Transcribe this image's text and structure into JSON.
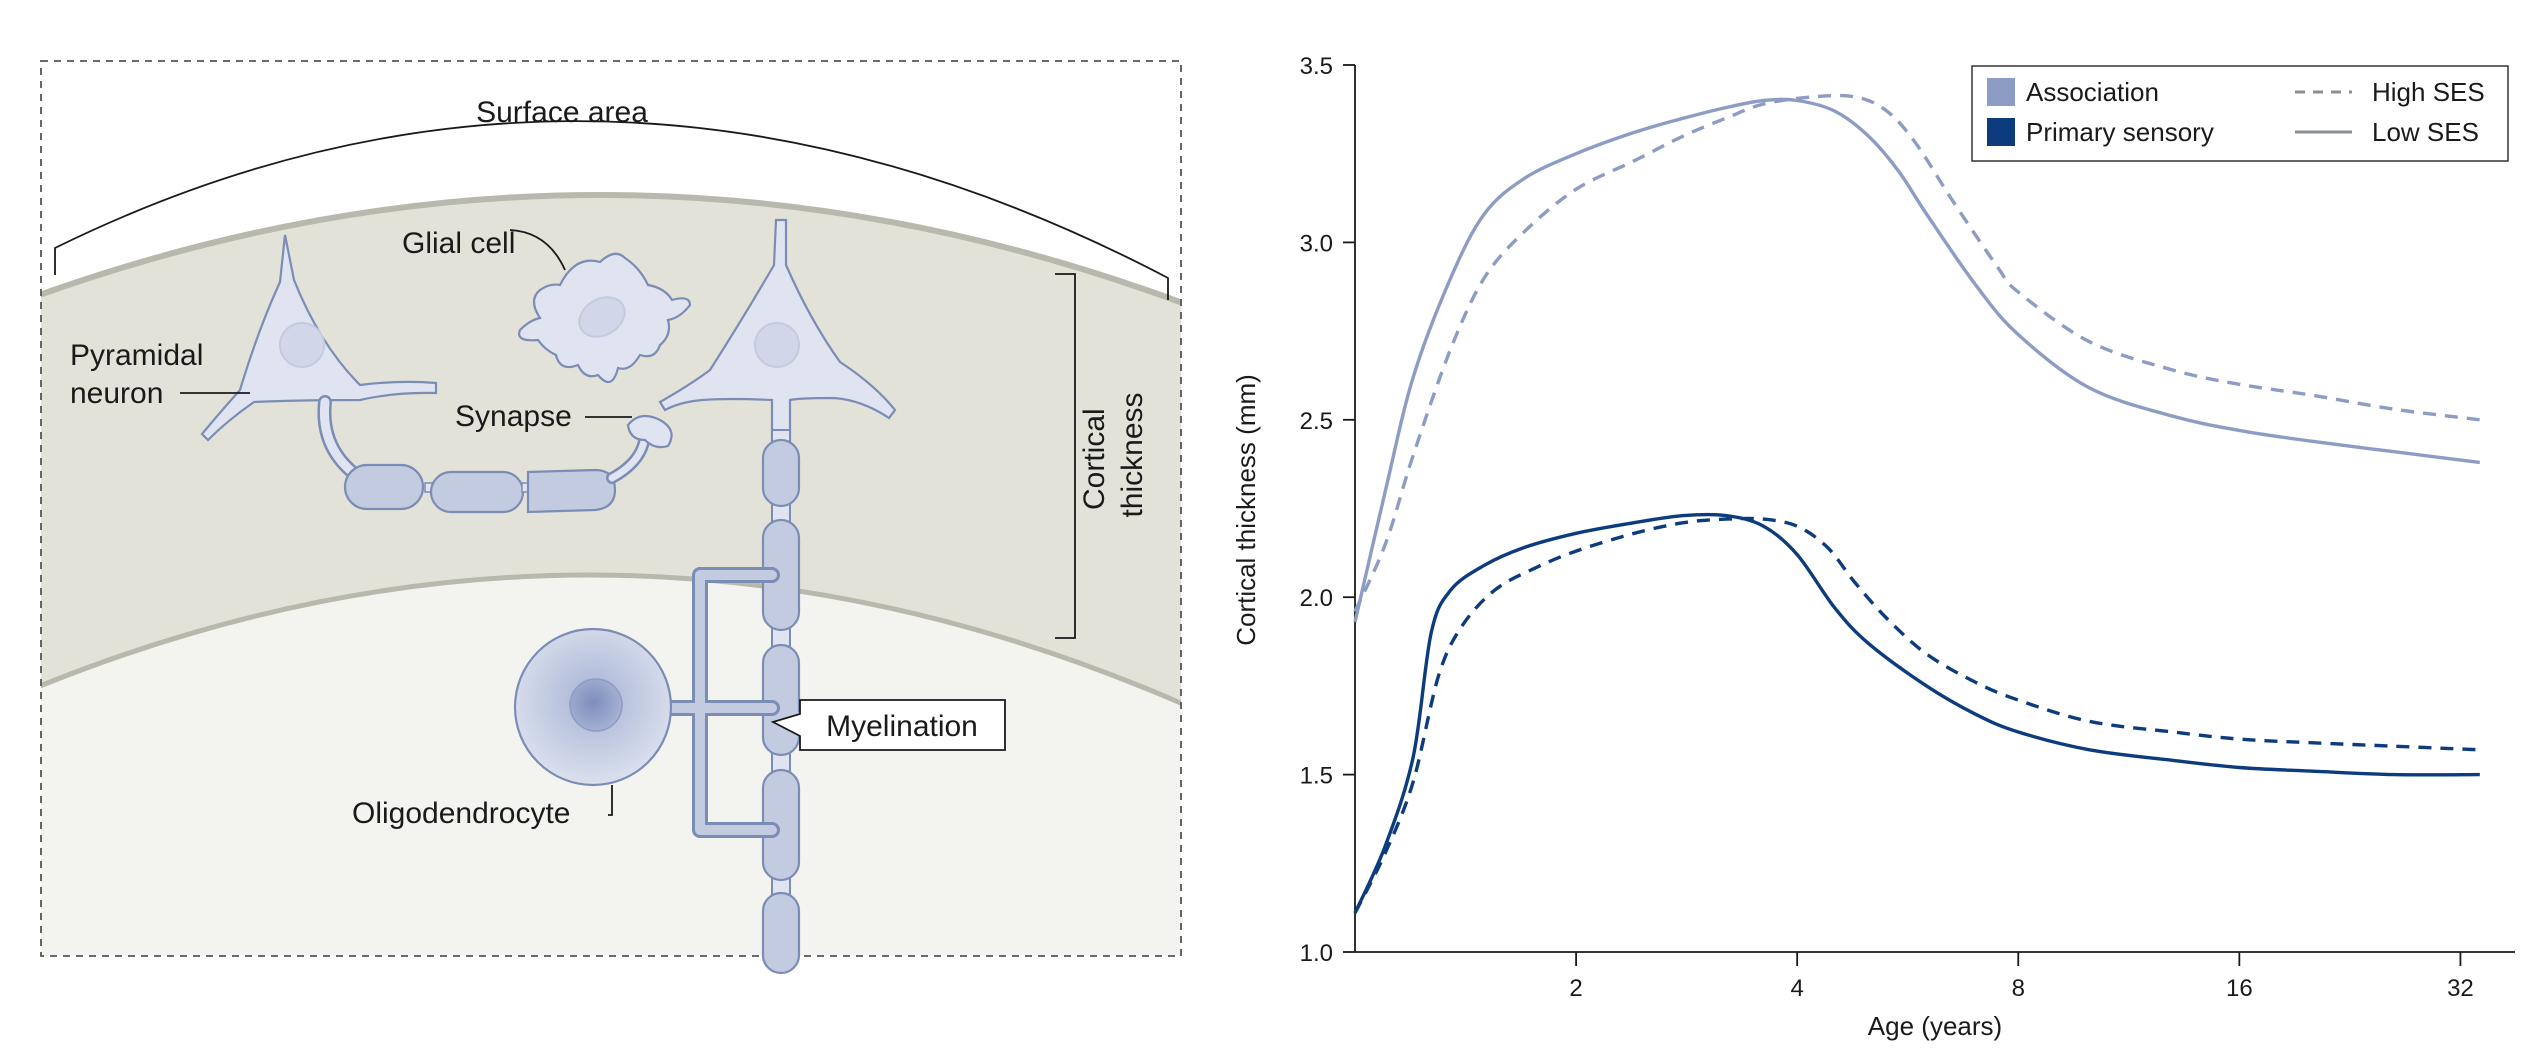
{
  "diagram": {
    "labels": {
      "surface_area": "Surface area",
      "glial_cell": "Glial cell",
      "pyramidal_neuron_line1": "Pyramidal",
      "pyramidal_neuron_line2": "neuron",
      "synapse": "Synapse",
      "cortical_line1": "Cortical",
      "cortical_line2": "thickness",
      "myelination": "Myelination",
      "oligodendrocyte": "Oligodendrocyte"
    }
  },
  "chart_data": {
    "type": "line",
    "title": "",
    "xlabel": "Age (years)",
    "ylabel": "Cortical thickness (mm)",
    "x_scale": "log2",
    "xlim": [
      1,
      36
    ],
    "ylim": [
      1.0,
      3.5
    ],
    "x_ticks": [
      2,
      4,
      8,
      16,
      32
    ],
    "y_ticks": [
      1.0,
      1.5,
      2.0,
      2.5,
      3.0,
      3.5
    ],
    "y_tick_labels": [
      "1.0",
      "1.5",
      "2.0",
      "2.5",
      "3.0",
      "3.5"
    ],
    "grid": false,
    "legend_position": "top-right",
    "legend": {
      "regions": [
        {
          "name": "Association",
          "color": "#8d9cc4"
        },
        {
          "name": "Primary sensory",
          "color": "#0d3c7e"
        }
      ],
      "styles": [
        {
          "name": "High SES",
          "dash": "dashed"
        },
        {
          "name": "Low SES",
          "dash": "solid"
        }
      ]
    },
    "series": [
      {
        "region": "Association",
        "ses": "Low SES",
        "color": "#8d9cc4",
        "dash": "solid",
        "points": [
          [
            1.0,
            1.93
          ],
          [
            1.1,
            2.3
          ],
          [
            1.2,
            2.62
          ],
          [
            1.35,
            2.9
          ],
          [
            1.5,
            3.08
          ],
          [
            1.7,
            3.18
          ],
          [
            2.0,
            3.25
          ],
          [
            2.4,
            3.31
          ],
          [
            2.8,
            3.35
          ],
          [
            3.2,
            3.38
          ],
          [
            3.6,
            3.4
          ],
          [
            4.0,
            3.4
          ],
          [
            4.5,
            3.37
          ],
          [
            5.0,
            3.3
          ],
          [
            5.5,
            3.2
          ],
          [
            6.0,
            3.08
          ],
          [
            7.0,
            2.88
          ],
          [
            8.0,
            2.74
          ],
          [
            10.0,
            2.59
          ],
          [
            13.0,
            2.51
          ],
          [
            16.0,
            2.47
          ],
          [
            20.0,
            2.44
          ],
          [
            26.0,
            2.41
          ],
          [
            34.0,
            2.38
          ]
        ]
      },
      {
        "region": "Association",
        "ses": "High SES",
        "color": "#8d9cc4",
        "dash": "dashed",
        "points": [
          [
            1.0,
            1.96
          ],
          [
            1.1,
            2.15
          ],
          [
            1.2,
            2.4
          ],
          [
            1.35,
            2.7
          ],
          [
            1.5,
            2.9
          ],
          [
            1.7,
            3.03
          ],
          [
            2.0,
            3.15
          ],
          [
            2.4,
            3.23
          ],
          [
            2.8,
            3.3
          ],
          [
            3.2,
            3.35
          ],
          [
            3.6,
            3.39
          ],
          [
            4.2,
            3.41
          ],
          [
            4.8,
            3.41
          ],
          [
            5.3,
            3.37
          ],
          [
            5.8,
            3.28
          ],
          [
            6.5,
            3.12
          ],
          [
            7.5,
            2.93
          ],
          [
            8.0,
            2.86
          ],
          [
            10.0,
            2.72
          ],
          [
            13.0,
            2.64
          ],
          [
            16.0,
            2.6
          ],
          [
            20.0,
            2.57
          ],
          [
            26.0,
            2.53
          ],
          [
            34.0,
            2.5
          ]
        ]
      },
      {
        "region": "Primary sensory",
        "ses": "Low SES",
        "color": "#0d3c7e",
        "dash": "solid",
        "points": [
          [
            1.0,
            1.11
          ],
          [
            1.1,
            1.3
          ],
          [
            1.2,
            1.55
          ],
          [
            1.27,
            1.9
          ],
          [
            1.35,
            2.02
          ],
          [
            1.5,
            2.09
          ],
          [
            1.7,
            2.14
          ],
          [
            2.0,
            2.18
          ],
          [
            2.4,
            2.21
          ],
          [
            2.8,
            2.23
          ],
          [
            3.2,
            2.23
          ],
          [
            3.6,
            2.2
          ],
          [
            4.0,
            2.12
          ],
          [
            4.5,
            1.97
          ],
          [
            5.0,
            1.87
          ],
          [
            6.0,
            1.75
          ],
          [
            7.0,
            1.67
          ],
          [
            8.0,
            1.62
          ],
          [
            10.0,
            1.57
          ],
          [
            13.0,
            1.54
          ],
          [
            16.0,
            1.52
          ],
          [
            20.0,
            1.51
          ],
          [
            26.0,
            1.5
          ],
          [
            34.0,
            1.5
          ]
        ]
      },
      {
        "region": "Primary sensory",
        "ses": "High SES",
        "color": "#0d3c7e",
        "dash": "dashed",
        "points": [
          [
            1.0,
            1.11
          ],
          [
            1.1,
            1.28
          ],
          [
            1.2,
            1.48
          ],
          [
            1.3,
            1.78
          ],
          [
            1.4,
            1.92
          ],
          [
            1.55,
            2.02
          ],
          [
            1.75,
            2.08
          ],
          [
            2.0,
            2.13
          ],
          [
            2.4,
            2.18
          ],
          [
            2.8,
            2.21
          ],
          [
            3.2,
            2.22
          ],
          [
            3.6,
            2.22
          ],
          [
            4.0,
            2.2
          ],
          [
            4.4,
            2.14
          ],
          [
            4.8,
            2.04
          ],
          [
            5.3,
            1.94
          ],
          [
            6.0,
            1.84
          ],
          [
            7.0,
            1.76
          ],
          [
            8.0,
            1.71
          ],
          [
            10.0,
            1.65
          ],
          [
            13.0,
            1.62
          ],
          [
            16.0,
            1.6
          ],
          [
            20.0,
            1.59
          ],
          [
            26.0,
            1.58
          ],
          [
            34.0,
            1.57
          ]
        ]
      }
    ]
  }
}
